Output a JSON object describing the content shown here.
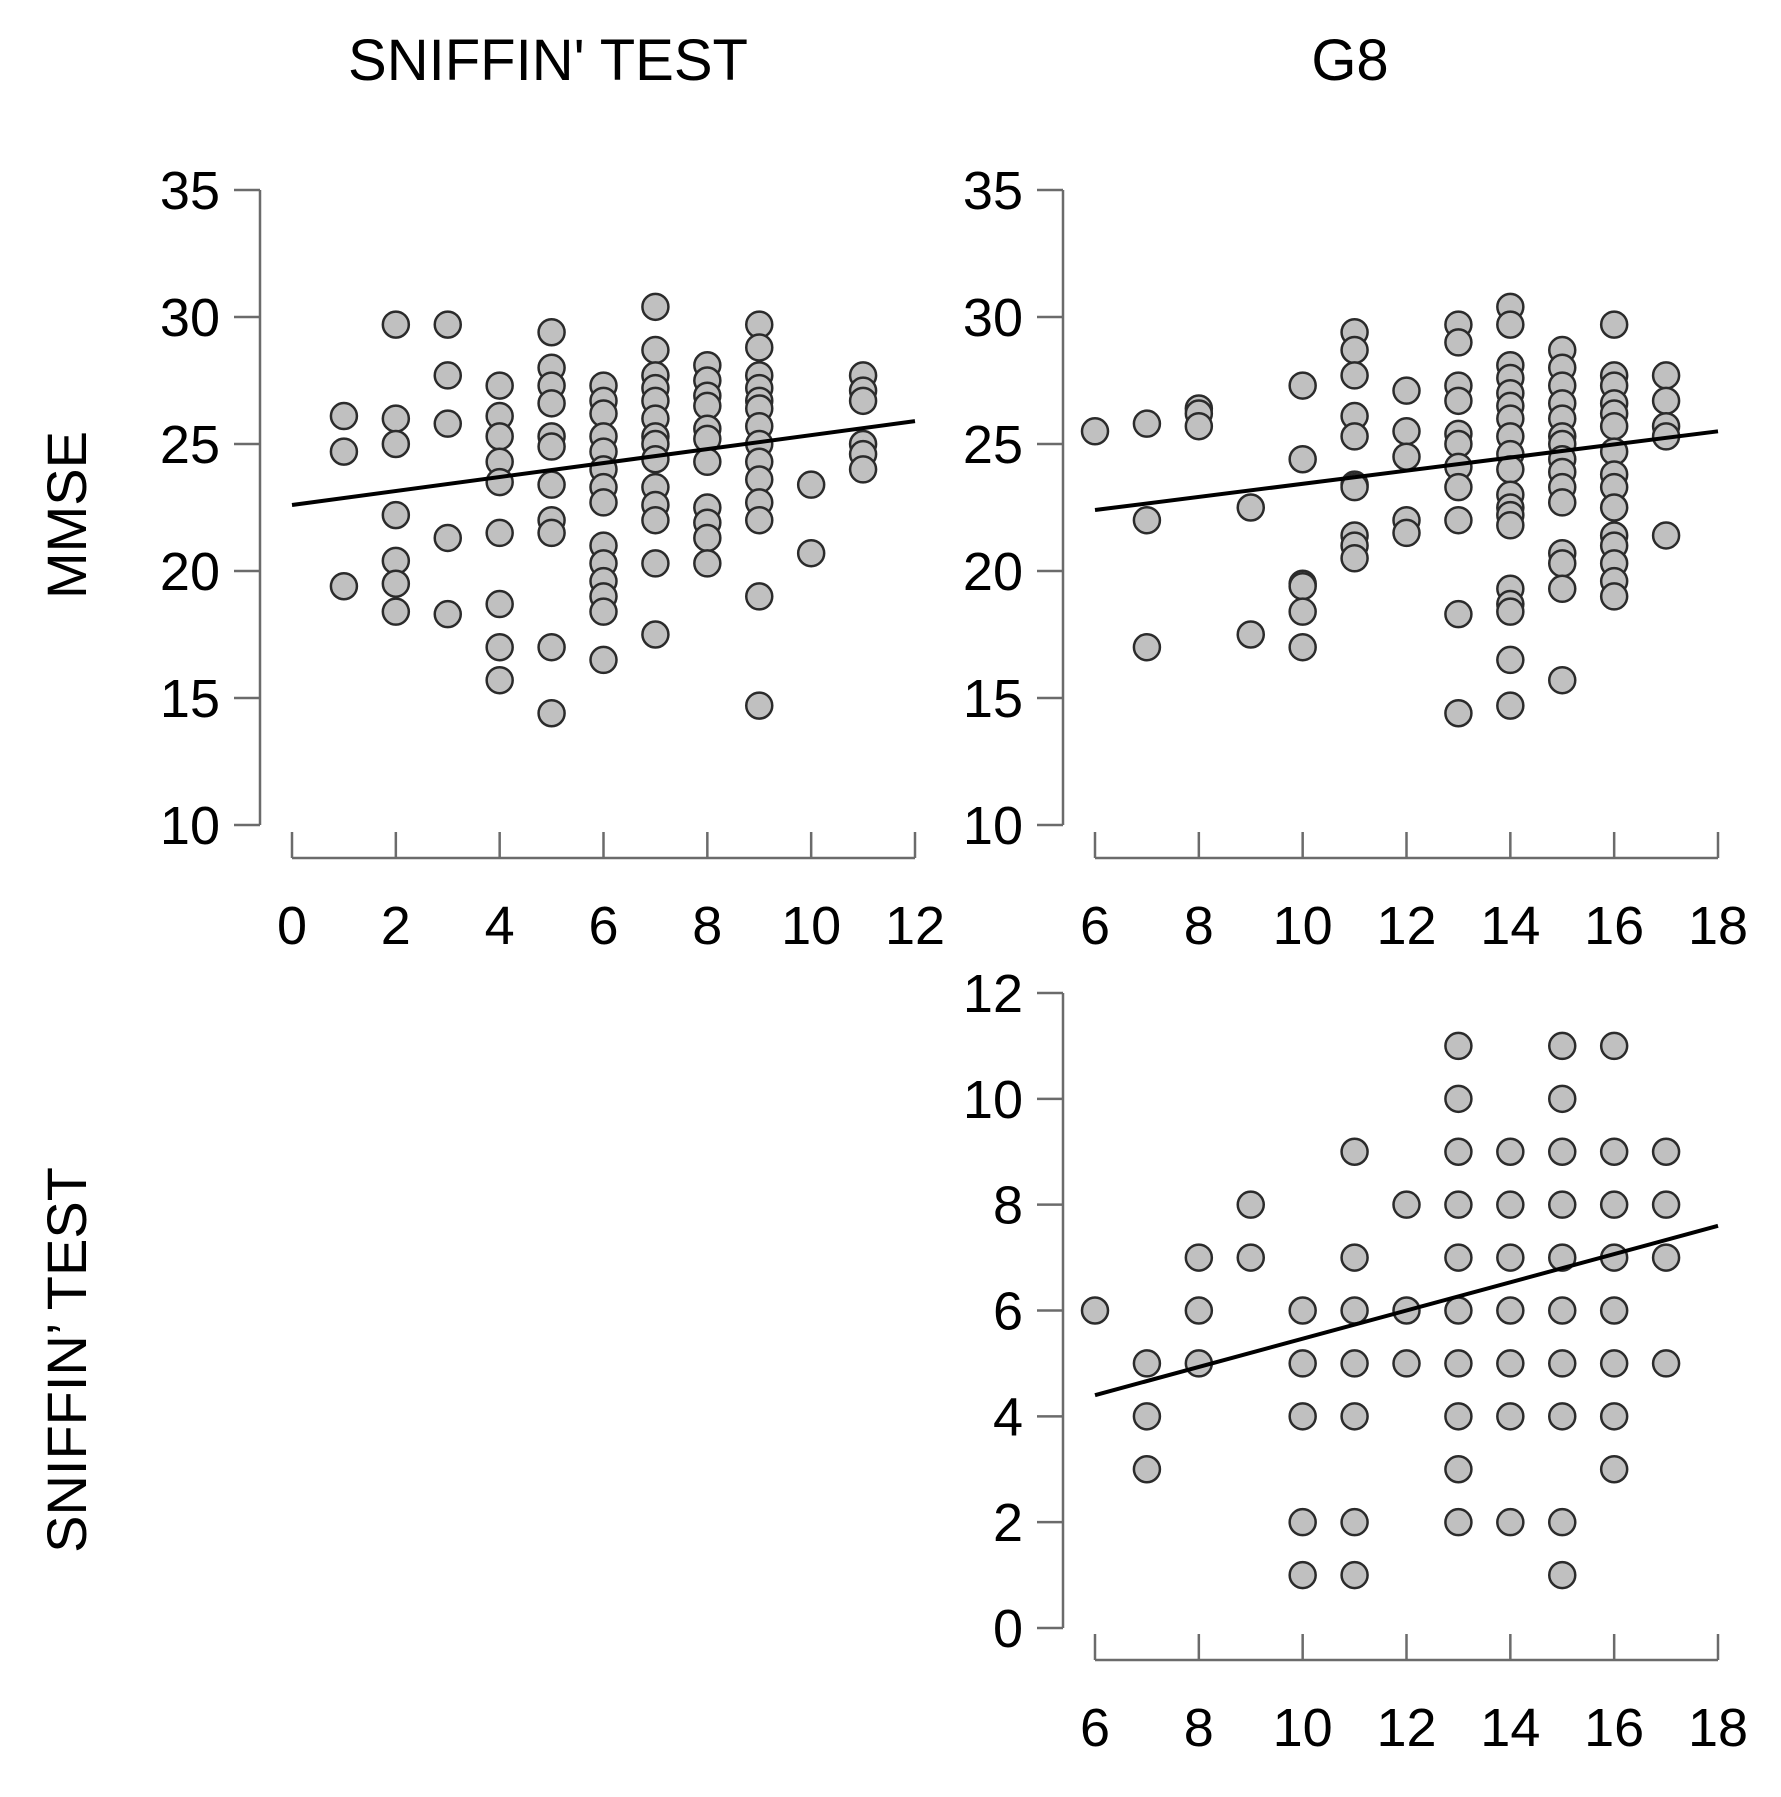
{
  "headers": {
    "col1": "SNIFFIN' TEST",
    "col2": "G8"
  },
  "row_labels": {
    "row1": "MMSE",
    "row2": "SNIFFIN’ TEST"
  },
  "chart_data": [
    {
      "type": "scatter",
      "id": "sniffin-vs-mmse",
      "title": "SNIFFIN' TEST",
      "xlabel": "",
      "ylabel": "MMSE",
      "xlim": [
        0,
        12
      ],
      "ylim": [
        10,
        35
      ],
      "x_ticks": [
        0,
        2,
        4,
        6,
        8,
        10,
        12
      ],
      "y_ticks": [
        10,
        15,
        20,
        25,
        30,
        35
      ],
      "fit_line": [
        [
          0,
          22.6
        ],
        [
          12,
          25.9
        ]
      ],
      "points": [
        [
          1,
          26.1
        ],
        [
          1,
          24.7
        ],
        [
          1,
          19.4
        ],
        [
          2,
          29.7
        ],
        [
          2,
          26
        ],
        [
          2,
          25
        ],
        [
          2,
          22.2
        ],
        [
          2,
          20.4
        ],
        [
          2,
          19.5
        ],
        [
          2,
          18.4
        ],
        [
          3,
          29.7
        ],
        [
          3,
          27.7
        ],
        [
          3,
          25.8
        ],
        [
          3,
          21.3
        ],
        [
          3,
          18.3
        ],
        [
          4,
          27.3
        ],
        [
          4,
          26.1
        ],
        [
          4,
          25.3
        ],
        [
          4,
          24.3
        ],
        [
          4,
          23.5
        ],
        [
          4,
          21.5
        ],
        [
          4,
          18.7
        ],
        [
          4,
          17
        ],
        [
          4,
          15.7
        ],
        [
          5,
          29.4
        ],
        [
          5,
          28
        ],
        [
          5,
          27.3
        ],
        [
          5,
          26.6
        ],
        [
          5,
          25.3
        ],
        [
          5,
          24.9
        ],
        [
          5,
          23.4
        ],
        [
          5,
          22
        ],
        [
          5,
          21.5
        ],
        [
          5,
          17
        ],
        [
          5,
          14.4
        ],
        [
          6,
          27.3
        ],
        [
          6,
          26.7
        ],
        [
          6,
          26.2
        ],
        [
          6,
          25.3
        ],
        [
          6,
          24.7
        ],
        [
          6,
          24
        ],
        [
          6,
          23.3
        ],
        [
          6,
          22.7
        ],
        [
          6,
          21
        ],
        [
          6,
          20.3
        ],
        [
          6,
          19.6
        ],
        [
          6,
          19
        ],
        [
          6,
          18.4
        ],
        [
          6,
          16.5
        ],
        [
          7,
          30.4
        ],
        [
          7,
          28.7
        ],
        [
          7,
          27.7
        ],
        [
          7,
          27.2
        ],
        [
          7,
          26.7
        ],
        [
          7,
          26
        ],
        [
          7,
          25.3
        ],
        [
          7,
          25
        ],
        [
          7,
          24.4
        ],
        [
          7,
          23.3
        ],
        [
          7,
          22.6
        ],
        [
          7,
          22
        ],
        [
          7,
          20.3
        ],
        [
          7,
          17.5
        ],
        [
          8,
          28.1
        ],
        [
          8,
          27.5
        ],
        [
          8,
          26.9
        ],
        [
          8,
          26.5
        ],
        [
          8,
          25.6
        ],
        [
          8,
          25.2
        ],
        [
          8,
          24.3
        ],
        [
          8,
          22.5
        ],
        [
          8,
          21.9
        ],
        [
          8,
          21.3
        ],
        [
          8,
          20.3
        ],
        [
          9,
          29.7
        ],
        [
          9,
          28.8
        ],
        [
          9,
          27.7
        ],
        [
          9,
          27.2
        ],
        [
          9,
          26.7
        ],
        [
          9,
          26.4
        ],
        [
          9,
          25.7
        ],
        [
          9,
          25
        ],
        [
          9,
          24.3
        ],
        [
          9,
          23.6
        ],
        [
          9,
          22.7
        ],
        [
          9,
          22
        ],
        [
          9,
          19
        ],
        [
          9,
          14.7
        ],
        [
          10,
          23.4
        ],
        [
          10,
          20.7
        ],
        [
          11,
          27.7
        ],
        [
          11,
          27.1
        ],
        [
          11,
          26.7
        ],
        [
          11,
          25
        ],
        [
          11,
          24.6
        ],
        [
          11,
          24
        ]
      ]
    },
    {
      "type": "scatter",
      "id": "g8-vs-mmse",
      "title": "G8",
      "xlabel": "",
      "ylabel": "MMSE",
      "xlim": [
        6,
        18
      ],
      "ylim": [
        10,
        35
      ],
      "x_ticks": [
        6,
        8,
        10,
        12,
        14,
        16,
        18
      ],
      "y_ticks": [
        10,
        15,
        20,
        25,
        30,
        35
      ],
      "fit_line": [
        [
          6,
          22.4
        ],
        [
          18,
          25.5
        ]
      ],
      "points": [
        [
          6,
          25.5
        ],
        [
          7,
          25.8
        ],
        [
          7,
          22
        ],
        [
          7,
          17
        ],
        [
          8,
          26.4
        ],
        [
          8,
          26.2
        ],
        [
          8,
          25.7
        ],
        [
          9,
          22.5
        ],
        [
          9,
          17.5
        ],
        [
          10,
          27.3
        ],
        [
          10,
          24.4
        ],
        [
          10,
          19.5
        ],
        [
          10,
          19.4
        ],
        [
          10,
          18.4
        ],
        [
          10,
          17
        ],
        [
          11,
          29.4
        ],
        [
          11,
          28.7
        ],
        [
          11,
          27.7
        ],
        [
          11,
          26.1
        ],
        [
          11,
          25.3
        ],
        [
          11,
          23.4
        ],
        [
          11,
          23.3
        ],
        [
          11,
          21.4
        ],
        [
          11,
          21
        ],
        [
          11,
          20.5
        ],
        [
          12,
          27.1
        ],
        [
          12,
          25.5
        ],
        [
          12,
          24.5
        ],
        [
          12,
          22
        ],
        [
          12,
          21.5
        ],
        [
          13,
          29.7
        ],
        [
          13,
          29
        ],
        [
          13,
          27.3
        ],
        [
          13,
          26.7
        ],
        [
          13,
          25.4
        ],
        [
          13,
          25
        ],
        [
          13,
          24.1
        ],
        [
          13,
          23.3
        ],
        [
          13,
          22
        ],
        [
          13,
          18.3
        ],
        [
          13,
          14.4
        ],
        [
          14,
          30.4
        ],
        [
          14,
          29.7
        ],
        [
          14,
          28.1
        ],
        [
          14,
          27.6
        ],
        [
          14,
          27
        ],
        [
          14,
          26.5
        ],
        [
          14,
          26
        ],
        [
          14,
          25.3
        ],
        [
          14,
          24.6
        ],
        [
          14,
          24
        ],
        [
          14,
          23
        ],
        [
          14,
          22.5
        ],
        [
          14,
          22.2
        ],
        [
          14,
          21.8
        ],
        [
          14,
          19.3
        ],
        [
          14,
          18.7
        ],
        [
          14,
          18.4
        ],
        [
          14,
          16.5
        ],
        [
          14,
          14.7
        ],
        [
          15,
          28.7
        ],
        [
          15,
          28
        ],
        [
          15,
          27.3
        ],
        [
          15,
          26.6
        ],
        [
          15,
          26
        ],
        [
          15,
          25.3
        ],
        [
          15,
          25
        ],
        [
          15,
          24.4
        ],
        [
          15,
          23.9
        ],
        [
          15,
          23.3
        ],
        [
          15,
          22.7
        ],
        [
          15,
          20.7
        ],
        [
          15,
          20.3
        ],
        [
          15,
          19.3
        ],
        [
          15,
          15.7
        ],
        [
          16,
          29.7
        ],
        [
          16,
          27.7
        ],
        [
          16,
          27.3
        ],
        [
          16,
          26.6
        ],
        [
          16,
          26.2
        ],
        [
          16,
          25.7
        ],
        [
          16,
          24.7
        ],
        [
          16,
          23.8
        ],
        [
          16,
          23.3
        ],
        [
          16,
          22.5
        ],
        [
          16,
          21.4
        ],
        [
          16,
          21
        ],
        [
          16,
          20.3
        ],
        [
          16,
          19.6
        ],
        [
          16,
          19
        ],
        [
          17,
          27.7
        ],
        [
          17,
          26.7
        ],
        [
          17,
          25.7
        ],
        [
          17,
          25.3
        ],
        [
          17,
          21.4
        ]
      ]
    },
    {
      "type": "scatter",
      "id": "g8-vs-sniffin",
      "title": "",
      "xlabel": "",
      "ylabel": "SNIFFIN’ TEST",
      "xlim": [
        6,
        18
      ],
      "ylim": [
        0,
        12
      ],
      "x_ticks": [
        6,
        8,
        10,
        12,
        14,
        16,
        18
      ],
      "y_ticks": [
        0,
        2,
        4,
        6,
        8,
        10,
        12
      ],
      "fit_line": [
        [
          6,
          4.4
        ],
        [
          18,
          7.6
        ]
      ],
      "points": [
        [
          6,
          6
        ],
        [
          7,
          5
        ],
        [
          7,
          4
        ],
        [
          7,
          3
        ],
        [
          8,
          7
        ],
        [
          8,
          6
        ],
        [
          8,
          5
        ],
        [
          9,
          8
        ],
        [
          9,
          7
        ],
        [
          10,
          6
        ],
        [
          10,
          5
        ],
        [
          10,
          4
        ],
        [
          10,
          2
        ],
        [
          10,
          1
        ],
        [
          11,
          9
        ],
        [
          11,
          7
        ],
        [
          11,
          6
        ],
        [
          11,
          5
        ],
        [
          11,
          4
        ],
        [
          11,
          2
        ],
        [
          11,
          1
        ],
        [
          12,
          8
        ],
        [
          12,
          6
        ],
        [
          12,
          5
        ],
        [
          13,
          11
        ],
        [
          13,
          10
        ],
        [
          13,
          9
        ],
        [
          13,
          8
        ],
        [
          13,
          7
        ],
        [
          13,
          6
        ],
        [
          13,
          5
        ],
        [
          13,
          4
        ],
        [
          13,
          3
        ],
        [
          13,
          2
        ],
        [
          14,
          9
        ],
        [
          14,
          8
        ],
        [
          14,
          7
        ],
        [
          14,
          6
        ],
        [
          14,
          5
        ],
        [
          14,
          4
        ],
        [
          14,
          2
        ],
        [
          15,
          11
        ],
        [
          15,
          10
        ],
        [
          15,
          9
        ],
        [
          15,
          8
        ],
        [
          15,
          7
        ],
        [
          15,
          6
        ],
        [
          15,
          5
        ],
        [
          15,
          4
        ],
        [
          15,
          2
        ],
        [
          15,
          1
        ],
        [
          16,
          11
        ],
        [
          16,
          9
        ],
        [
          16,
          8
        ],
        [
          16,
          7
        ],
        [
          16,
          6
        ],
        [
          16,
          5
        ],
        [
          16,
          4
        ],
        [
          16,
          3
        ],
        [
          17,
          9
        ],
        [
          17,
          8
        ],
        [
          17,
          7
        ],
        [
          17,
          5
        ]
      ]
    }
  ]
}
